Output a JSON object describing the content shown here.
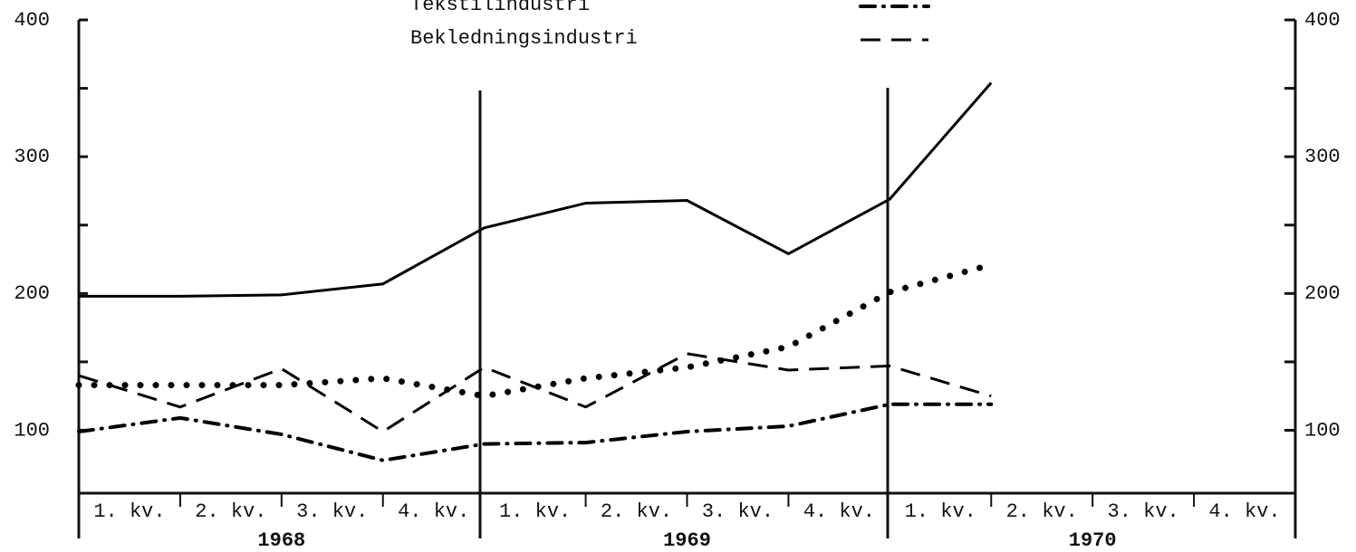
{
  "chart_data": {
    "type": "line",
    "categories": [
      "1. kv.",
      "2. kv.",
      "3. kv.",
      "4. kv.",
      "1. kv.",
      "2. kv.",
      "3. kv.",
      "4. kv.",
      "1. kv.",
      "2. kv.",
      "3. kv.",
      "4. kv."
    ],
    "years": [
      "1968",
      "1969",
      "1970"
    ],
    "series": [
      {
        "color": "#000000",
        "style": "solid",
        "values": [
          198,
          198,
          199,
          207,
          248,
          266,
          268,
          229,
          269,
          354,
          null,
          null
        ]
      },
      {
        "color": "#000000",
        "style": "dotted",
        "values": [
          133,
          133,
          133,
          138,
          125,
          138,
          146,
          161,
          201,
          221,
          null,
          null
        ]
      },
      {
        "name": "Tekstilindustri",
        "color": "#000000",
        "style": "dashdot",
        "values": [
          99,
          109,
          97,
          78,
          90,
          91,
          99,
          103,
          119,
          119,
          null,
          null
        ]
      },
      {
        "name": "Bekledningsindustri",
        "color": "#000000",
        "style": "dashed",
        "values": [
          140,
          117,
          145,
          99,
          146,
          117,
          156,
          144,
          147,
          125,
          null,
          null
        ]
      }
    ],
    "ylim": [
      54,
      400
    ],
    "yticks": [
      100,
      200,
      300,
      400
    ],
    "minor_yticks": [
      150,
      250,
      350
    ],
    "legend": "top"
  }
}
